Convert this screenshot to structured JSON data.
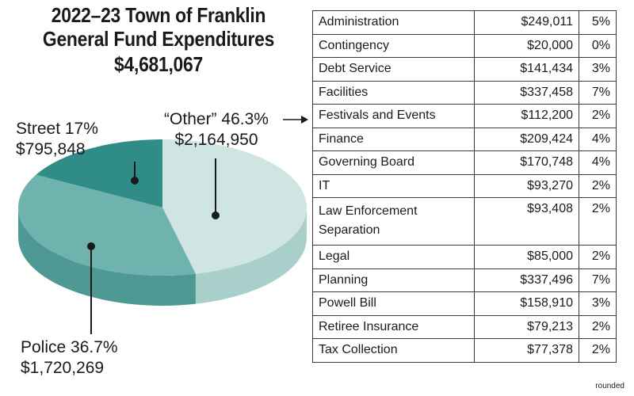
{
  "header": {
    "title_line1": "2022–23 Town of Franklin",
    "title_line2": "General Fund Expenditures",
    "total": "$4,681,067"
  },
  "chart_data": [
    {
      "type": "pie",
      "slices": [
        {
          "label": "“Other” 46.3%",
          "name": "Other",
          "percent": 46.3,
          "amount": "$2,164,950",
          "color": "#cfe5e2"
        },
        {
          "label": "Police 36.7%",
          "name": "Police",
          "percent": 36.7,
          "amount": "$1,720,269",
          "color": "#6fb3af"
        },
        {
          "label": "Street 17%",
          "name": "Street",
          "percent": 17,
          "amount": "$795,848",
          "color": "#2f8c86"
        }
      ]
    },
    {
      "type": "table",
      "rows": [
        {
          "category": "Administration",
          "amount": "$249,011",
          "percent": "5%"
        },
        {
          "category": "Contingency",
          "amount": "$20,000",
          "percent": "0%"
        },
        {
          "category": "Debt Service",
          "amount": "$141,434",
          "percent": "3%"
        },
        {
          "category": "Facilities",
          "amount": "$337,458",
          "percent": "7%"
        },
        {
          "category": "Festivals and Events",
          "amount": "$112,200",
          "percent": "2%"
        },
        {
          "category": "Finance",
          "amount": "$209,424",
          "percent": "4%"
        },
        {
          "category": "Governing Board",
          "amount": "$170,748",
          "percent": "4%"
        },
        {
          "category": "IT",
          "amount": "$93,270",
          "percent": "2%"
        },
        {
          "category": "Law Enforcement Separation",
          "amount": "$93,408",
          "percent": "2%"
        },
        {
          "category": "Legal",
          "amount": "$85,000",
          "percent": "2%"
        },
        {
          "category": "Planning",
          "amount": "$337,496",
          "percent": "7%"
        },
        {
          "category": "Powell Bill",
          "amount": "$158,910",
          "percent": "3%"
        },
        {
          "category": "Retiree Insurance",
          "amount": "$79,213",
          "percent": "2%"
        },
        {
          "category": "Tax Collection",
          "amount": "$77,378",
          "percent": "2%"
        }
      ],
      "footnote": "rounded"
    }
  ],
  "colors": {
    "other": "#cfe5e2",
    "police": "#6fb3af",
    "street": "#2f8c86",
    "other_side": "#a9cfcb",
    "police_side": "#4f9994",
    "street_side": "#1f6e69"
  }
}
